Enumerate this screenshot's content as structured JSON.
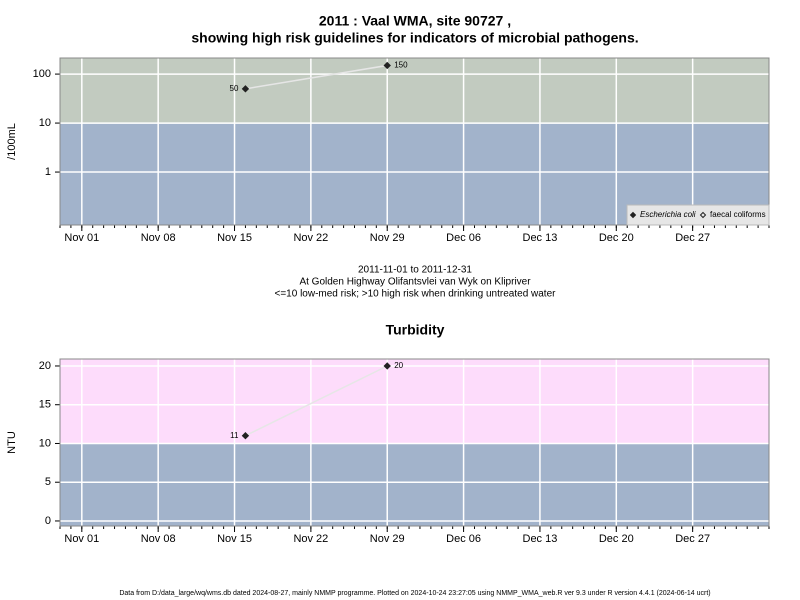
{
  "chart_data": [
    {
      "type": "line",
      "title": [
        "2011 : Vaal WMA, site 90727 ,",
        "showing high risk guidelines for indicators of microbial pathogens."
      ],
      "ylabel": "/100mL",
      "log_scale": true,
      "x": [
        "2011-11-16",
        "2011-11-29"
      ],
      "series": [
        {
          "name": "Escherichia coli",
          "color": "#222222",
          "marker": "filled",
          "values": [
            50,
            150
          ]
        },
        {
          "name": "faecal coliforms",
          "color": "#222222",
          "marker": "open",
          "values": [
            null,
            null
          ]
        }
      ],
      "line_color": "#e6e6e6",
      "threshold": 10,
      "color_high": "#c2cbc0",
      "color_low": "#a2b3cb",
      "xlim": [
        "2011-10-30",
        "2012-01-03"
      ],
      "xticks": [
        {
          "value": "2011-11-01",
          "label": "Nov 01"
        },
        {
          "value": "2011-11-08",
          "label": "Nov 08"
        },
        {
          "value": "2011-11-15",
          "label": "Nov 15"
        },
        {
          "value": "2011-11-22",
          "label": "Nov 22"
        },
        {
          "value": "2011-11-29",
          "label": "Nov 29"
        },
        {
          "value": "2011-12-06",
          "label": "Dec 06"
        },
        {
          "value": "2011-12-13",
          "label": "Dec 13"
        },
        {
          "value": "2011-12-20",
          "label": "Dec 20"
        },
        {
          "value": "2011-12-27",
          "label": "Dec 27"
        }
      ],
      "ylim": [
        0.083,
        213
      ],
      "yticks": [
        1,
        10,
        100
      ],
      "grid": true,
      "legend": "bottom-right",
      "caption": [
        "2011-11-01 to 2011-12-31",
        "At Golden Highway Olifantsvlei van Wyk on Klipriver",
        "<=10 low-med risk; >10 high risk when drinking untreated water"
      ]
    },
    {
      "type": "line",
      "title": [
        "Turbidity"
      ],
      "ylabel": "NTU",
      "log_scale": false,
      "x": [
        "2011-11-16",
        "2011-11-29"
      ],
      "series": [
        {
          "color": "#222222",
          "marker": "filled",
          "values": [
            11,
            20
          ]
        }
      ],
      "line_color": "#e6e6e6",
      "threshold": 10,
      "color_high": "#fddcfb",
      "color_low": "#a2b3cb",
      "xlim": [
        "2011-10-30",
        "2012-01-03"
      ],
      "xticks": [
        {
          "value": "2011-11-01",
          "label": "Nov 01"
        },
        {
          "value": "2011-11-08",
          "label": "Nov 08"
        },
        {
          "value": "2011-11-15",
          "label": "Nov 15"
        },
        {
          "value": "2011-11-22",
          "label": "Nov 22"
        },
        {
          "value": "2011-11-29",
          "label": "Nov 29"
        },
        {
          "value": "2011-12-06",
          "label": "Dec 06"
        },
        {
          "value": "2011-12-13",
          "label": "Dec 13"
        },
        {
          "value": "2011-12-20",
          "label": "Dec 20"
        },
        {
          "value": "2011-12-27",
          "label": "Dec 27"
        }
      ],
      "ylim": [
        -0.65,
        20.9
      ],
      "yticks": [
        0,
        5,
        10,
        15,
        20
      ],
      "grid": true
    }
  ],
  "footer": "Data from D:/data_large/wq/wms.db dated 2024-08-27, mainly NMMP programme. Plotted on 2024-10-24 23:27:05 using NMMP_WMA_web.R ver 9.3 under R version 4.4.1 (2024-06-14 ucrt)"
}
